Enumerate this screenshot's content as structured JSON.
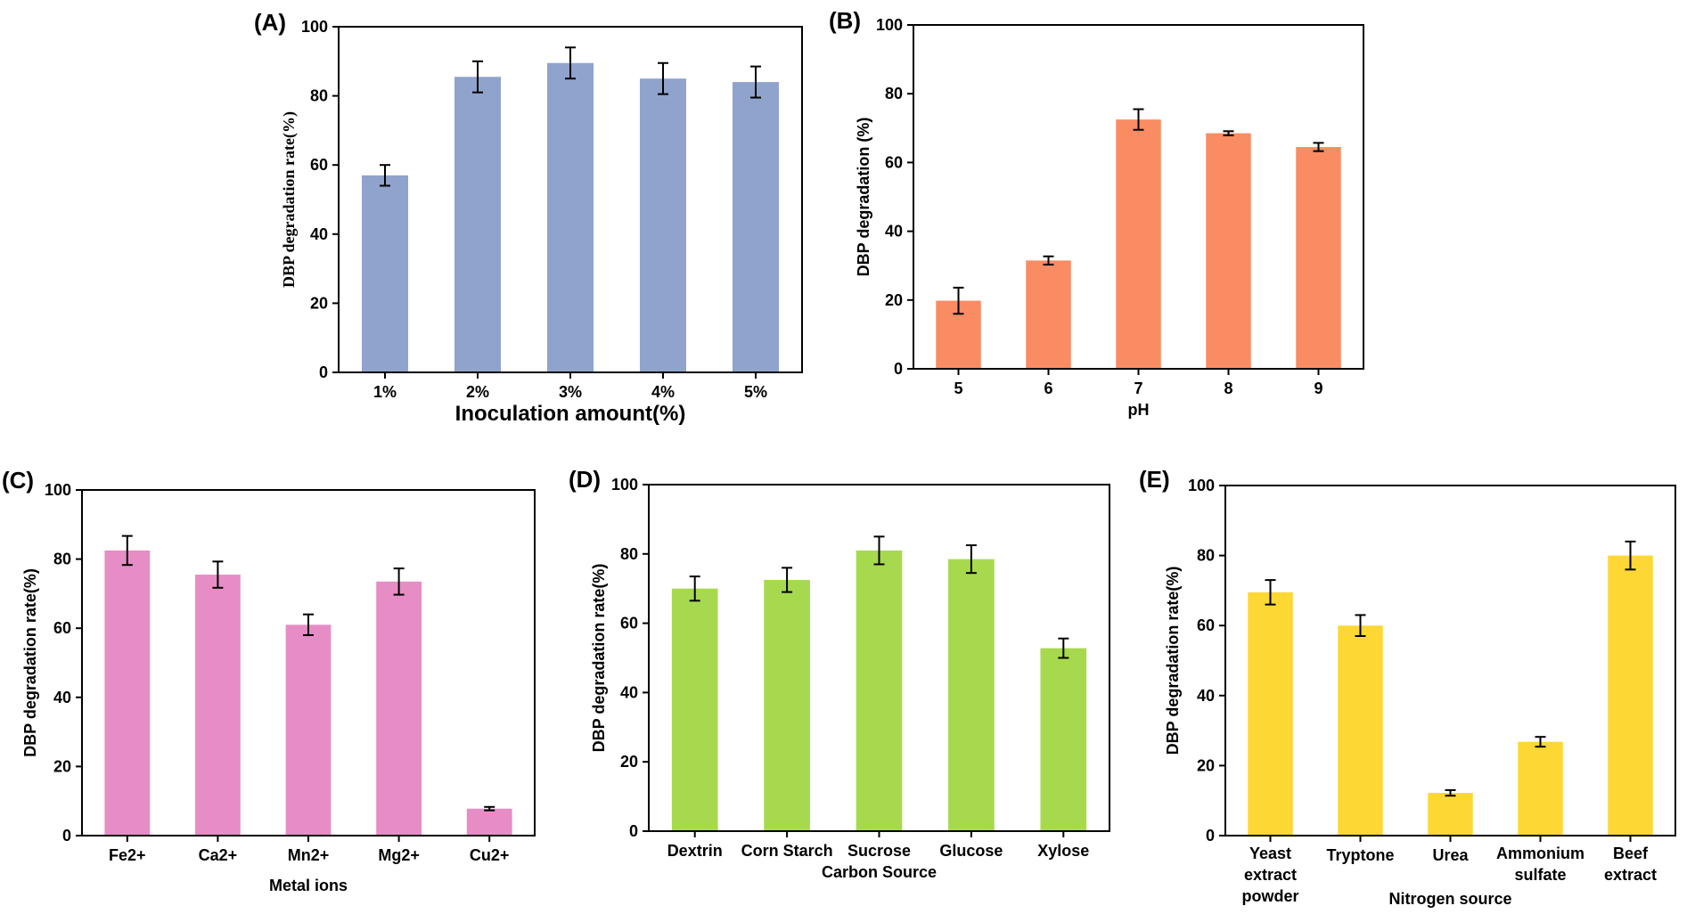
{
  "chart_data": [
    {
      "panel": "(A)",
      "type": "bar",
      "categories": [
        "1%",
        "2%",
        "3%",
        "4%",
        "5%"
      ],
      "values": [
        57,
        85.5,
        89.5,
        85,
        84
      ],
      "errors": [
        3,
        4.5,
        4.5,
        4.5,
        4.5
      ],
      "xlabel": "Inoculation amount(%)",
      "ylabel": "DBP degradation rate(%)",
      "ylim": [
        0,
        100
      ],
      "yticks": [
        "0",
        "20",
        "40",
        "60",
        "80",
        "100"
      ],
      "color": "#8fa3cc"
    },
    {
      "panel": "(B)",
      "type": "bar",
      "categories": [
        "5",
        "6",
        "7",
        "8",
        "9"
      ],
      "values": [
        19.8,
        31.5,
        72.5,
        68.5,
        64.5
      ],
      "errors": [
        3.8,
        1.2,
        3,
        0.6,
        1.2
      ],
      "xlabel": "pH",
      "ylabel": "DBP degradation (%)",
      "ylim": [
        0,
        100
      ],
      "yticks": [
        "0",
        "20",
        "40",
        "60",
        "80",
        "100"
      ],
      "color": "#fa8c64"
    },
    {
      "panel": "(C)",
      "type": "bar",
      "categories": [
        "Fe2+",
        "Ca2+",
        "Mn2+",
        "Mg2+",
        "Cu2+"
      ],
      "values": [
        82.5,
        75.5,
        61,
        73.5,
        7.8
      ],
      "errors": [
        4.2,
        3.8,
        3,
        3.8,
        0.5
      ],
      "xlabel": "Metal ions",
      "ylabel": "DBP degradation rate(%)",
      "ylim": [
        0,
        100
      ],
      "yticks": [
        "0",
        "20",
        "40",
        "60",
        "80",
        "100"
      ],
      "color": "#e68dc5"
    },
    {
      "panel": "(D)",
      "type": "bar",
      "categories": [
        "Dextrin",
        "Corn Starch",
        "Sucrose",
        "Glucose",
        "Xylose"
      ],
      "values": [
        70,
        72.5,
        81,
        78.5,
        52.8
      ],
      "errors": [
        3.5,
        3.5,
        4,
        4,
        2.8
      ],
      "xlabel": "Carbon Source",
      "ylabel": "DBP degradation rate(%)",
      "ylim": [
        0,
        100
      ],
      "yticks": [
        "0",
        "20",
        "40",
        "60",
        "80",
        "100"
      ],
      "color": "#a7d94f"
    },
    {
      "panel": "(E)",
      "type": "bar",
      "categories": [
        "Yeast extract powder",
        "Tryptone",
        "Urea",
        "Ammonium sulfate",
        "Beef extract"
      ],
      "values": [
        69.5,
        60,
        12.2,
        26.8,
        80
      ],
      "errors": [
        3.5,
        3,
        0.8,
        1.4,
        4
      ],
      "xlabel": "Nitrogen source",
      "ylabel": "DBP degradation rate(%)",
      "ylim": [
        0,
        100
      ],
      "yticks": [
        "0",
        "20",
        "40",
        "60",
        "80",
        "100"
      ],
      "color": "#fdd835"
    }
  ]
}
